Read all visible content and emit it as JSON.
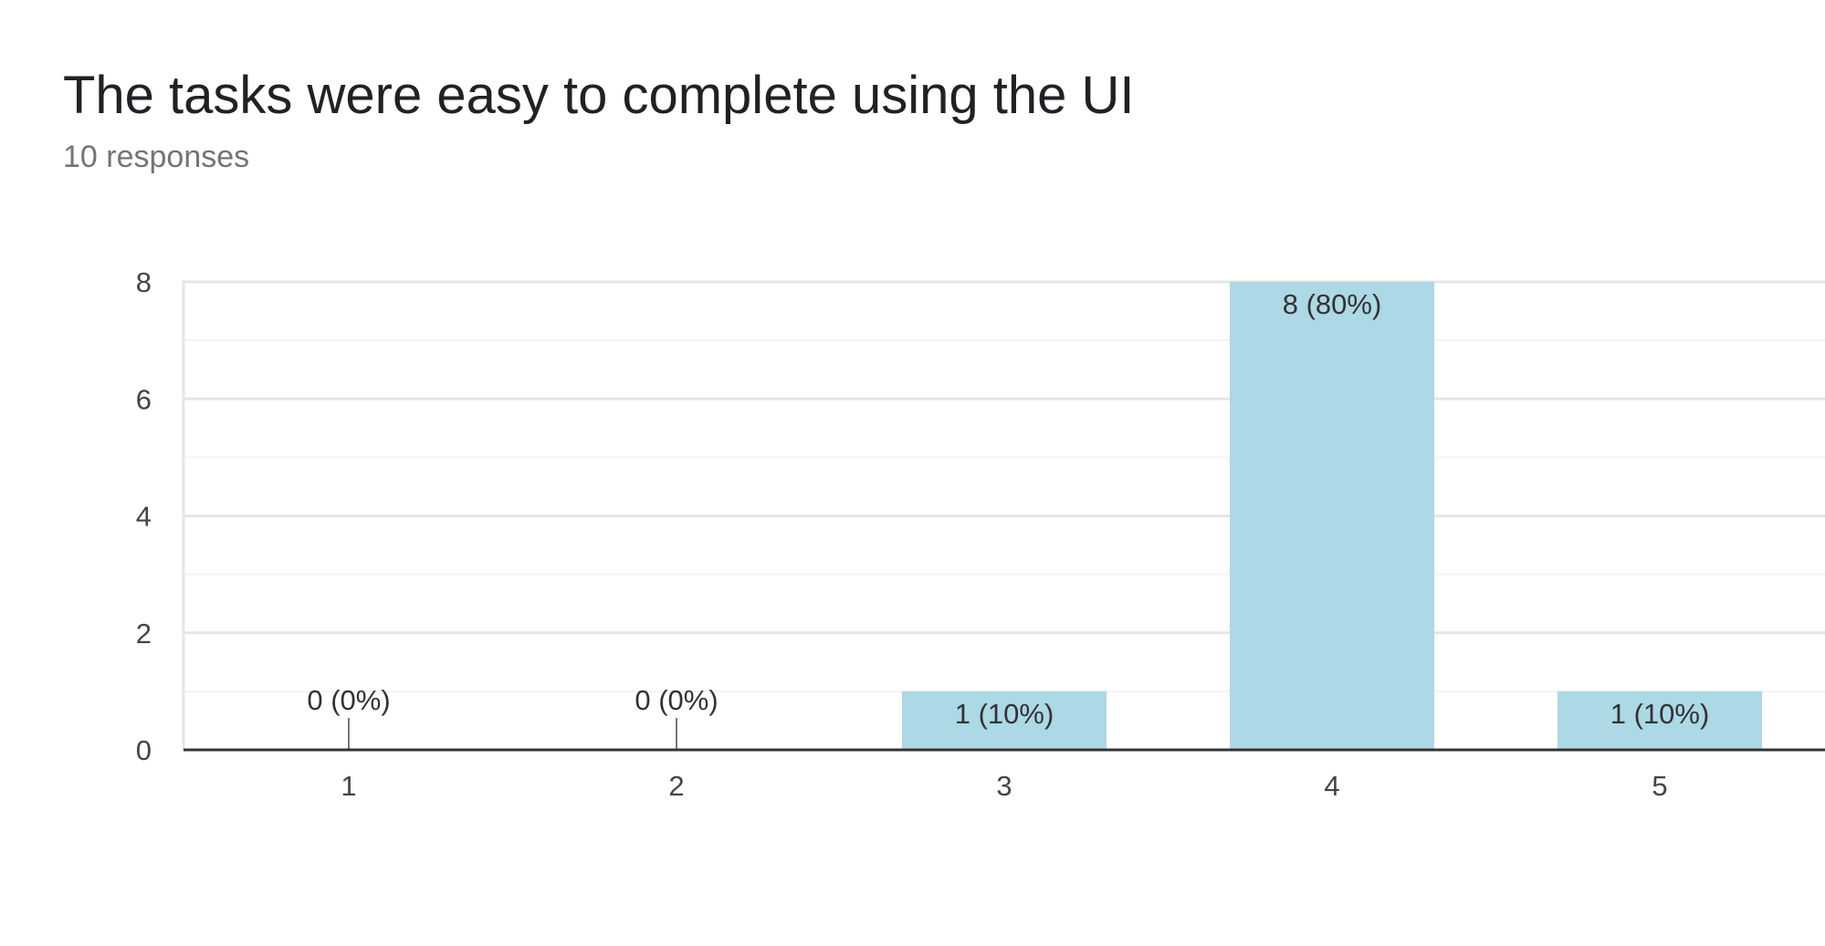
{
  "header": {
    "title": "The tasks were easy to complete using the UI",
    "subtitle": "10 responses"
  },
  "chart_data": {
    "type": "bar",
    "categories": [
      "1",
      "2",
      "3",
      "4",
      "5"
    ],
    "values": [
      0,
      0,
      1,
      8,
      1
    ],
    "data_labels": [
      "0 (0%)",
      "0 (0%)",
      "1 (10%)",
      "8 (80%)",
      "1 (10%)"
    ],
    "title": "The tasks were easy to complete using the UI",
    "subtitle": "10 responses",
    "xlabel": "",
    "ylabel": "",
    "ylim": [
      0,
      8
    ],
    "yticks": [
      0,
      2,
      4,
      6,
      8
    ],
    "grid": true,
    "legend": "none",
    "bar_color": "#add8e6",
    "baseline_color": "#333333",
    "gridline_color": "#e6e6e6",
    "minor_gridline_color": "#f3f3f3"
  }
}
